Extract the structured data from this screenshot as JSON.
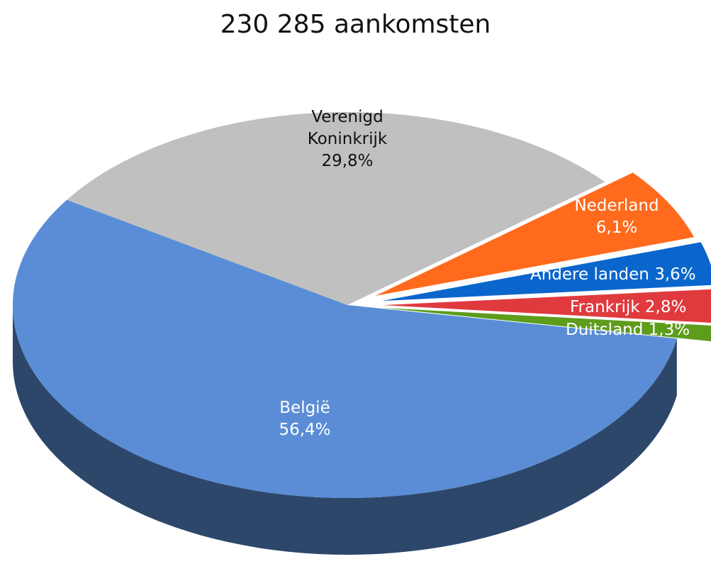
{
  "chart_data": {
    "type": "pie",
    "title": "230 285 aankomsten",
    "categories": [
      "België",
      "Verenigd Koninkrijk",
      "Nederland",
      "Andere landen",
      "Frankrijk",
      "Duitsland"
    ],
    "values": [
      56.4,
      29.8,
      6.1,
      3.6,
      2.8,
      1.3
    ],
    "value_labels": [
      "56,4%",
      "29,8%",
      "6,1%",
      "3,6%",
      "2,8%",
      "1,3%"
    ],
    "colors": [
      "#5a8dd6",
      "#c0c0c0",
      "#ff6a1c",
      "#0a66cc",
      "#e03a3e",
      "#5e9c1c"
    ]
  }
}
